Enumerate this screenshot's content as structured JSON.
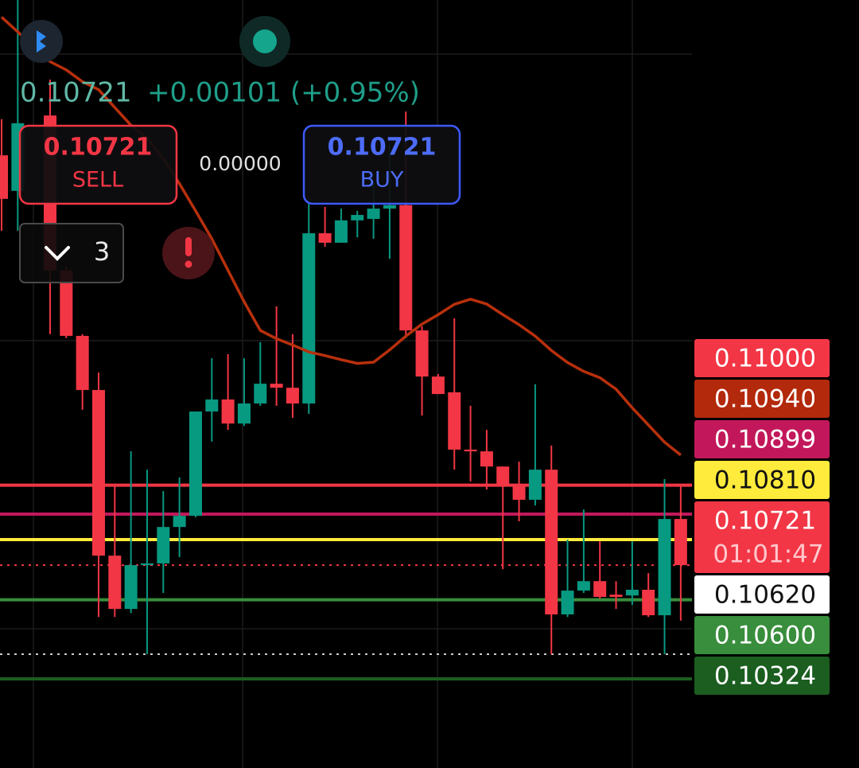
{
  "header": {
    "price": "0.10721",
    "change": "+0.00101 (+0.95%)"
  },
  "order_panel": {
    "sell": {
      "price": "0.10721",
      "label": "SELL"
    },
    "spread": "0.00000",
    "buy": {
      "price": "0.10721",
      "label": "BUY"
    },
    "quantity": "3"
  },
  "chart_data": {
    "type": "candlestick",
    "ylim": [
      0.10013,
      0.12693
    ],
    "up_color": "#089981",
    "down_color": "#f23645",
    "open": [
      0.12151,
      0.12027,
      null,
      0.1229,
      0.11749,
      0.11521,
      0.11332,
      0.10754,
      0.10568,
      0.10721,
      0.10727,
      0.10854,
      0.10893,
      0.11257,
      0.11299,
      0.11215,
      0.11285,
      0.11354,
      0.1134,
      0.11285,
      0.11879,
      0.11846,
      0.11924,
      0.11929,
      0.11965,
      0.11977,
      0.1154,
      0.11379,
      0.11324,
      0.11124,
      0.11118,
      0.11065,
      0.11004,
      0.10949,
      0.11054,
      0.10549,
      0.10632,
      0.10665,
      0.10618,
      0.10615,
      0.10635,
      0.10546,
      0.10882
    ],
    "high": [
      0.12277,
      0.12693,
      null,
      0.12415,
      0.11763,
      0.11527,
      0.11393,
      0.10999,
      0.11118,
      0.11054,
      0.10979,
      0.11027,
      0.11257,
      0.11443,
      0.11457,
      0.11443,
      0.11499,
      0.11624,
      0.11527,
      0.11999,
      0.11971,
      0.11965,
      0.11957,
      0.12054,
      0.12193,
      0.12304,
      0.11554,
      0.11388,
      0.11582,
      0.11277,
      0.11193,
      0.11065,
      0.11082,
      0.11352,
      0.11138,
      0.1081,
      0.10915,
      0.10804,
      0.10665,
      0.10804,
      0.10693,
      0.11021,
      0.10999
    ],
    "low": [
      0.11888,
      0.11888,
      null,
      0.11527,
      0.11513,
      0.11263,
      0.1054,
      0.1054,
      0.10554,
      0.1041,
      0.10624,
      0.10749,
      0.10888,
      0.11152,
      0.11193,
      0.11207,
      0.11277,
      0.11277,
      0.11235,
      0.11249,
      0.11832,
      0.11846,
      0.11865,
      0.1186,
      0.1179,
      0.11513,
      0.11243,
      0.11318,
      0.11054,
      0.11013,
      0.10985,
      0.10707,
      0.10874,
      0.10929,
      0.1041,
      0.1054,
      0.10624,
      0.10604,
      0.10568,
      0.10582,
      0.1054,
      0.1041,
      0.10527
    ],
    "close": [
      0.11999,
      0.12263,
      null,
      0.11749,
      0.11521,
      0.11332,
      0.10754,
      0.10568,
      0.10721,
      0.10727,
      0.10854,
      0.10893,
      0.11257,
      0.11299,
      0.11215,
      0.11285,
      0.11354,
      0.1134,
      0.11285,
      0.11879,
      0.11846,
      0.11924,
      0.11943,
      0.11965,
      0.11977,
      0.1154,
      0.11379,
      0.11318,
      0.11124,
      0.11118,
      0.11065,
      0.11004,
      0.10949,
      0.11054,
      0.10549,
      0.10632,
      0.10665,
      0.1061,
      0.1061,
      0.10635,
      0.10546,
      0.10882,
      0.10721
    ],
    "moving_average": {
      "color": "#b8300c",
      "values": [
        0.12633,
        0.12582,
        0.12527,
        0.12478,
        0.12449,
        0.12408,
        0.1238,
        0.12318,
        0.12256,
        0.1221,
        0.1214,
        0.12052,
        0.11957,
        0.1186,
        0.1175,
        0.1164,
        0.1154,
        0.11511,
        0.11489,
        0.11465,
        0.11452,
        0.11438,
        0.11425,
        0.11429,
        0.11472,
        0.1152,
        0.11562,
        0.11595,
        0.11631,
        0.11649,
        0.11632,
        0.11595,
        0.1156,
        0.1152,
        0.1147,
        0.11428,
        0.11397,
        0.11375,
        0.11335,
        0.1127,
        0.1121,
        0.1115,
        0.11105
      ]
    },
    "levels": [
      {
        "value": 0.11,
        "label": "0.11000",
        "color": "#f23645",
        "text_color": "#ffffff",
        "line": "solid"
      },
      {
        "value": 0.1094,
        "label": "0.10940",
        "color": "#b3290b",
        "text_color": "#ffffff",
        "line": "none"
      },
      {
        "value": 0.10899,
        "label": "0.10899",
        "color": "#c2185b",
        "text_color": "#ffffff",
        "line": "solid"
      },
      {
        "value": 0.1081,
        "label": "0.10810",
        "color": "#ffeb3b",
        "text_color": "#111111",
        "line": "solid"
      },
      {
        "value": 0.10721,
        "label": "0.10721",
        "countdown": "01:01:47",
        "color": "#f23645",
        "text_color": "#ffffff",
        "line": "dotted"
      },
      {
        "value": 0.1062,
        "label": "0.10620",
        "color": "#ffffff",
        "text_color": "#111111",
        "line": "none"
      },
      {
        "value": 0.106,
        "label": "0.10600",
        "color": "#388e3c",
        "text_color": "#ffffff",
        "line": "solid"
      },
      {
        "value": 0.1041,
        "color": "#cccccc",
        "line": "dotted"
      },
      {
        "value": 0.10324,
        "label": "0.10324",
        "color": "#1b5e20",
        "text_color": "#ffffff",
        "line": "solid"
      }
    ]
  }
}
